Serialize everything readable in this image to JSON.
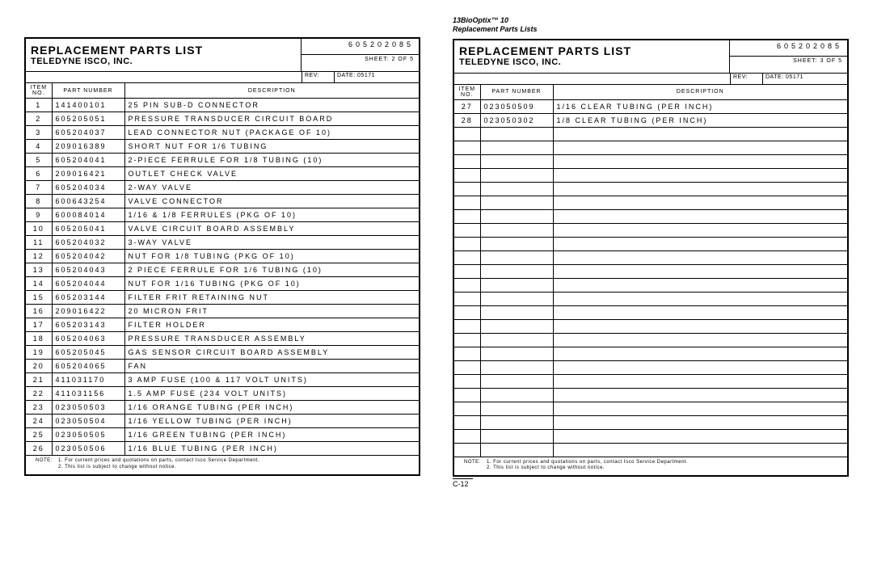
{
  "doc_header": {
    "line1": "13BioOptix™ 10",
    "line2": "Replacement Parts Lists"
  },
  "sheets": [
    {
      "title": "REPLACEMENT PARTS LIST",
      "subtitle": "TELEDYNE ISCO, INC.",
      "doc_no": "605202085",
      "sheet_label": "SHEET: 2 OF 5",
      "rev_label": "REV:",
      "date_label": "DATE: 05171",
      "columns": [
        "ITEM\nNO.",
        "PART NUMBER",
        "DESCRIPTION"
      ],
      "rows": [
        [
          "1",
          "141400101",
          "25 PIN SUB-D CONNECTOR"
        ],
        [
          "2",
          "605205051",
          "PRESSURE TRANSDUCER CIRCUIT BOARD"
        ],
        [
          "3",
          "605204037",
          "LEAD CONNECTOR NUT (PACKAGE OF 10)"
        ],
        [
          "4",
          "209016389",
          "SHORT NUT FOR 1/6 TUBING"
        ],
        [
          "5",
          "605204041",
          "2-PIECE FERRULE FOR 1/8 TUBING (10)"
        ],
        [
          "6",
          "209016421",
          "OUTLET CHECK VALVE"
        ],
        [
          "7",
          "605204034",
          "2-WAY VALVE"
        ],
        [
          "8",
          "600643254",
          "VALVE CONNECTOR"
        ],
        [
          "9",
          "600084014",
          "1/16 & 1/8 FERRULES (PKG OF 10)"
        ],
        [
          "10",
          "605205041",
          "VALVE CIRCUIT BOARD ASSEMBLY"
        ],
        [
          "11",
          "605204032",
          "3-WAY VALVE"
        ],
        [
          "12",
          "605204042",
          "NUT FOR 1/8 TUBING (PKG OF 10)"
        ],
        [
          "13",
          "605204043",
          "2 PIECE FERRULE FOR 1/6 TUBING (10)"
        ],
        [
          "14",
          "605204044",
          "NUT FOR 1/16 TUBING (PKG OF 10)"
        ],
        [
          "15",
          "605203144",
          "FILTER FRIT RETAINING NUT"
        ],
        [
          "16",
          "209016422",
          "20 MICRON FRIT"
        ],
        [
          "17",
          "605203143",
          "FILTER HOLDER"
        ],
        [
          "18",
          "605204063",
          "PRESSURE TRANSDUCER ASSEMBLY"
        ],
        [
          "19",
          "605205045",
          "GAS SENSOR CIRCUIT BOARD ASSEMBLY"
        ],
        [
          "20",
          "605204065",
          "FAN"
        ],
        [
          "21",
          "411031170",
          "3 AMP FUSE (100 & 117 VOLT UNITS)"
        ],
        [
          "22",
          "411031156",
          "1.5 AMP FUSE (234 VOLT UNITS)"
        ],
        [
          "23",
          "023050503",
          "1/16 ORANGE TUBING (PER INCH)"
        ],
        [
          "24",
          "023050504",
          "1/16 YELLOW TUBING (PER INCH)"
        ],
        [
          "25",
          "023050505",
          "1/16 GREEN TUBING (PER INCH)"
        ],
        [
          "26",
          "023050506",
          "1/16 BLUE TUBING (PER INCH)"
        ]
      ],
      "empty_rows": 0
    },
    {
      "title": "REPLACEMENT PARTS LIST",
      "subtitle": "TELEDYNE ISCO, INC.",
      "doc_no": "605202085",
      "sheet_label": "SHEET: 3 OF 5",
      "rev_label": "REV:",
      "date_label": "DATE: 05171",
      "columns": [
        "ITEM\nNO.",
        "PART NUMBER",
        "DESCRIPTION"
      ],
      "rows": [
        [
          "27",
          "023050509",
          "1/16 CLEAR TUBING (PER INCH)"
        ],
        [
          "28",
          "023050302",
          "1/8 CLEAR TUBING (PER INCH)"
        ]
      ],
      "empty_rows": 24
    }
  ],
  "notes": {
    "label": "NOTE:",
    "line1": "1. For current prices and quotations on parts, contact Isco Service Department.",
    "line2": "2. This list is subject to change without notice."
  },
  "page_number": "C-12"
}
